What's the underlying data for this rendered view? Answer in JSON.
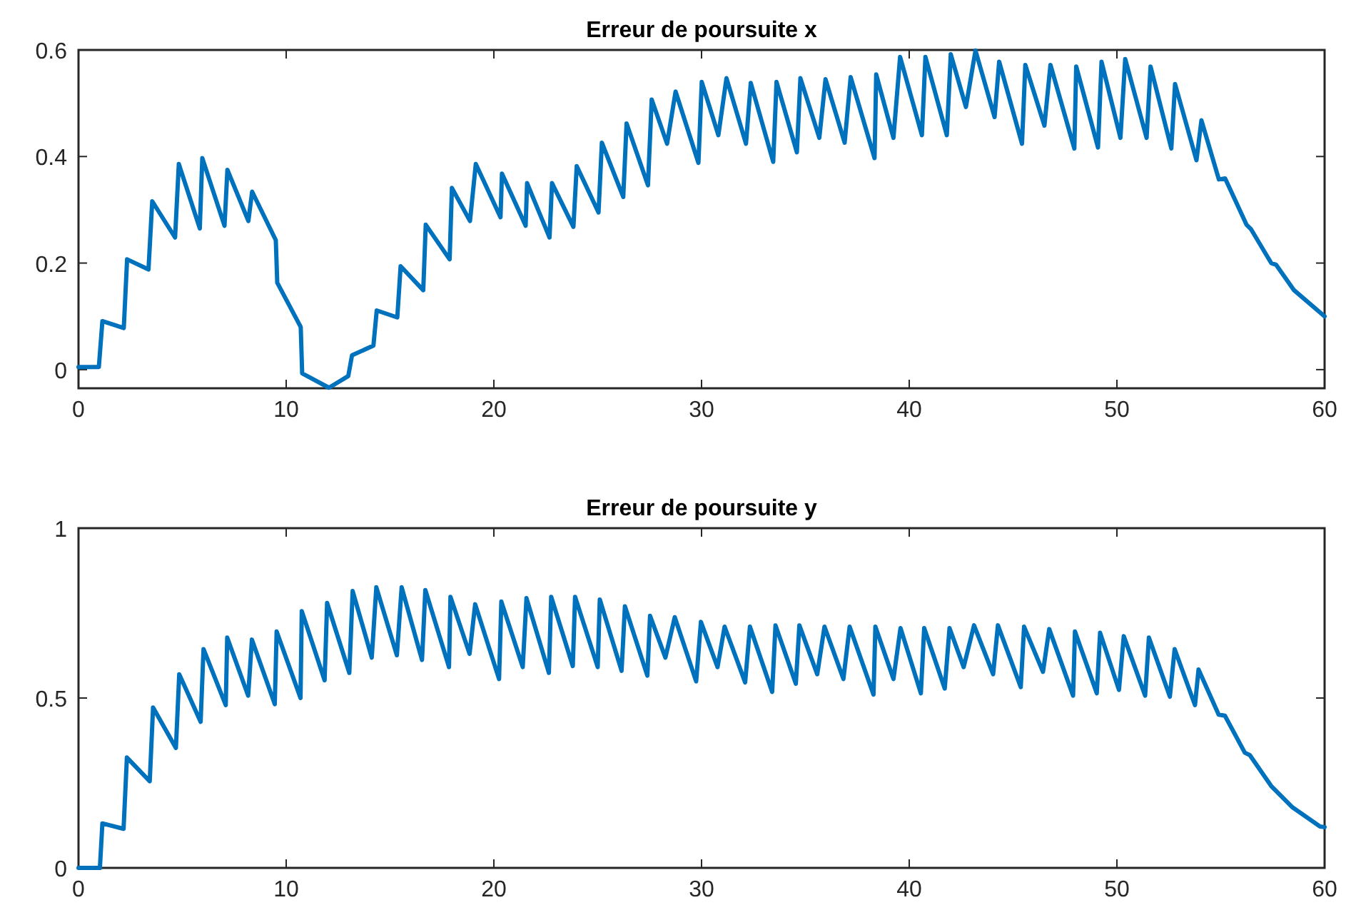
{
  "chart_data": [
    {
      "type": "line",
      "title": "Erreur de poursuite x",
      "xlim": [
        0,
        60
      ],
      "xticks": [
        0,
        10,
        20,
        30,
        40,
        50,
        60
      ],
      "ylim": [
        -0.035,
        0.6
      ],
      "yticks": [
        0,
        0.2,
        0.4,
        0.6
      ],
      "grid": false,
      "line_style": "solid",
      "marker": "none",
      "series": [
        {
          "color": "#0072bd",
          "x": [
            0,
            0.98,
            1.15,
            2.18,
            2.34,
            3.37,
            3.55,
            4.65,
            4.83,
            5.84,
            5.96,
            7.03,
            7.17,
            8.18,
            8.36,
            9.5,
            9.57,
            10.7,
            10.77,
            12.06,
            12.99,
            13.17,
            14.2,
            14.36,
            15.35,
            15.51,
            16.6,
            16.72,
            17.87,
            17.98,
            18.85,
            19.13,
            20.32,
            20.39,
            21.53,
            21.6,
            22.68,
            22.8,
            23.83,
            23.99,
            25.04,
            25.2,
            26.23,
            26.39,
            27.42,
            27.6,
            28.34,
            28.75,
            29.85,
            30.01,
            30.81,
            31.2,
            32.14,
            32.37,
            33.45,
            33.61,
            34.59,
            34.76,
            35.67,
            35.97,
            36.89,
            37.18,
            38.33,
            38.41,
            39.24,
            39.56,
            40.61,
            40.78,
            41.81,
            42.0,
            42.73,
            43.19,
            44.11,
            44.33,
            45.43,
            45.59,
            46.51,
            46.8,
            47.95,
            48.04,
            49.09,
            49.26,
            50.17,
            50.4,
            51.43,
            51.62,
            52.62,
            52.8,
            53.83,
            54.07,
            54.91,
            55.21,
            56.24,
            56.45,
            57.43,
            57.66,
            58.53,
            60
          ],
          "values": [
            0.005,
            0.005,
            0.091,
            0.078,
            0.207,
            0.188,
            0.316,
            0.248,
            0.386,
            0.265,
            0.397,
            0.27,
            0.375,
            0.279,
            0.334,
            0.243,
            0.163,
            0.08,
            -0.007,
            -0.034,
            -0.012,
            0.027,
            0.045,
            0.111,
            0.098,
            0.194,
            0.149,
            0.272,
            0.207,
            0.341,
            0.279,
            0.386,
            0.286,
            0.368,
            0.27,
            0.35,
            0.248,
            0.35,
            0.268,
            0.382,
            0.295,
            0.426,
            0.324,
            0.462,
            0.346,
            0.507,
            0.424,
            0.522,
            0.388,
            0.54,
            0.44,
            0.547,
            0.424,
            0.538,
            0.39,
            0.54,
            0.408,
            0.547,
            0.435,
            0.545,
            0.426,
            0.549,
            0.397,
            0.554,
            0.435,
            0.587,
            0.44,
            0.587,
            0.44,
            0.592,
            0.493,
            0.599,
            0.474,
            0.578,
            0.424,
            0.572,
            0.458,
            0.572,
            0.415,
            0.569,
            0.417,
            0.578,
            0.435,
            0.583,
            0.435,
            0.569,
            0.415,
            0.536,
            0.393,
            0.468,
            0.357,
            0.359,
            0.272,
            0.264,
            0.2,
            0.197,
            0.149,
            0.1
          ]
        }
      ]
    },
    {
      "type": "line",
      "title": "Erreur de poursuite y",
      "xlim": [
        0,
        60
      ],
      "xticks": [
        0,
        10,
        20,
        30,
        40,
        50,
        60
      ],
      "ylim": [
        0,
        1
      ],
      "yticks": [
        0,
        0.5,
        1
      ],
      "grid": false,
      "line_style": "solid",
      "marker": "none",
      "series": [
        {
          "color": "#0072bd",
          "x": [
            0,
            1.03,
            1.15,
            2.17,
            2.33,
            3.43,
            3.59,
            4.69,
            4.85,
            5.88,
            6.02,
            7.09,
            7.16,
            8.17,
            8.35,
            9.45,
            9.54,
            10.69,
            10.75,
            11.85,
            11.97,
            13.04,
            13.2,
            14.12,
            14.34,
            15.33,
            15.56,
            16.54,
            16.7,
            17.84,
            17.91,
            18.83,
            19.1,
            20.25,
            20.36,
            21.39,
            21.57,
            22.65,
            22.76,
            23.8,
            23.91,
            25.0,
            25.1,
            26.15,
            26.31,
            27.39,
            27.52,
            28.26,
            28.71,
            29.74,
            29.97,
            30.77,
            31.11,
            32.1,
            32.33,
            33.4,
            33.56,
            34.54,
            34.71,
            35.57,
            35.92,
            36.83,
            37.13,
            38.28,
            38.37,
            39.24,
            39.58,
            40.56,
            40.72,
            41.71,
            41.94,
            42.62,
            43.12,
            44.04,
            44.27,
            45.37,
            45.53,
            46.44,
            46.74,
            47.89,
            47.98,
            49.03,
            49.19,
            50.1,
            50.33,
            51.36,
            51.54,
            52.55,
            52.78,
            53.76,
            53.93,
            54.9,
            55.2,
            56.16,
            56.4,
            57.43,
            58.46,
            59.78,
            60
          ],
          "values": [
            0,
            0,
            0.131,
            0.115,
            0.325,
            0.255,
            0.472,
            0.353,
            0.57,
            0.43,
            0.644,
            0.479,
            0.678,
            0.507,
            0.672,
            0.482,
            0.696,
            0.5,
            0.756,
            0.552,
            0.78,
            0.574,
            0.815,
            0.619,
            0.826,
            0.626,
            0.826,
            0.612,
            0.818,
            0.591,
            0.798,
            0.63,
            0.776,
            0.556,
            0.784,
            0.591,
            0.794,
            0.574,
            0.798,
            0.594,
            0.798,
            0.591,
            0.79,
            0.58,
            0.77,
            0.566,
            0.742,
            0.619,
            0.738,
            0.549,
            0.724,
            0.591,
            0.71,
            0.546,
            0.71,
            0.518,
            0.714,
            0.542,
            0.714,
            0.57,
            0.71,
            0.556,
            0.71,
            0.51,
            0.71,
            0.556,
            0.706,
            0.514,
            0.706,
            0.528,
            0.706,
            0.591,
            0.714,
            0.57,
            0.714,
            0.532,
            0.71,
            0.577,
            0.703,
            0.507,
            0.696,
            0.514,
            0.692,
            0.524,
            0.682,
            0.507,
            0.678,
            0.504,
            0.644,
            0.479,
            0.584,
            0.451,
            0.448,
            0.339,
            0.332,
            0.241,
            0.178,
            0.122,
            0.12
          ]
        }
      ]
    }
  ]
}
